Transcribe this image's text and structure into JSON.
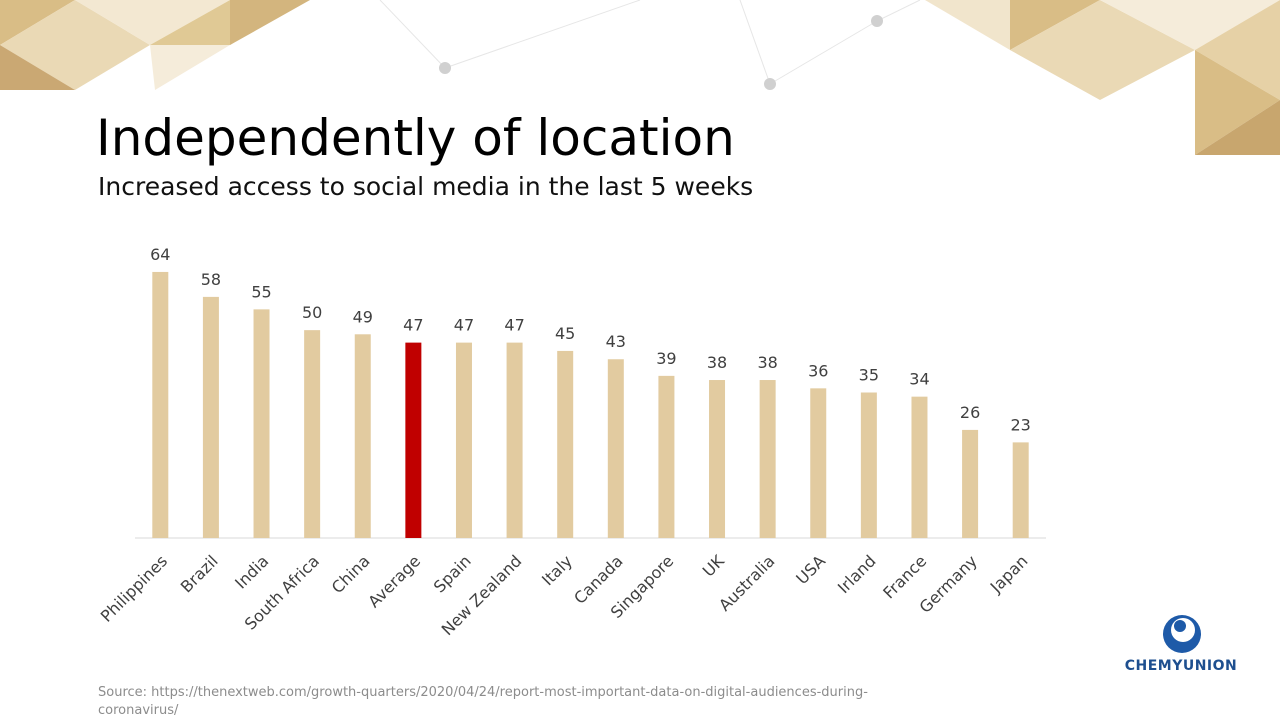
{
  "chart_data": {
    "type": "bar",
    "title": "Independently of location",
    "subtitle": "Increased access to social media in the last 5 weeks",
    "categories": [
      "Philippines",
      "Brazil",
      "India",
      "South Africa",
      "China",
      "Average",
      "Spain",
      "New Zealand",
      "Italy",
      "Canada",
      "Singapore",
      "UK",
      "Australia",
      "USA",
      "Irland",
      "France",
      "Germany",
      "Japan"
    ],
    "values": [
      64,
      58,
      55,
      50,
      49,
      47,
      47,
      47,
      45,
      43,
      39,
      38,
      38,
      36,
      35,
      34,
      26,
      23
    ],
    "colors": [
      "#e2cba0",
      "#e2cba0",
      "#e2cba0",
      "#e2cba0",
      "#e2cba0",
      "#c00000",
      "#e2cba0",
      "#e2cba0",
      "#e2cba0",
      "#e2cba0",
      "#e2cba0",
      "#e2cba0",
      "#e2cba0",
      "#e2cba0",
      "#e2cba0",
      "#e2cba0",
      "#e2cba0",
      "#e2cba0"
    ],
    "ylim": [
      0,
      70
    ],
    "source": "Source: https://thenextweb.com/growth-quarters/2020/04/24/report-most-important-data-on-digital-audiences-during-coronavirus/",
    "logo": "CHEMYUNION"
  }
}
